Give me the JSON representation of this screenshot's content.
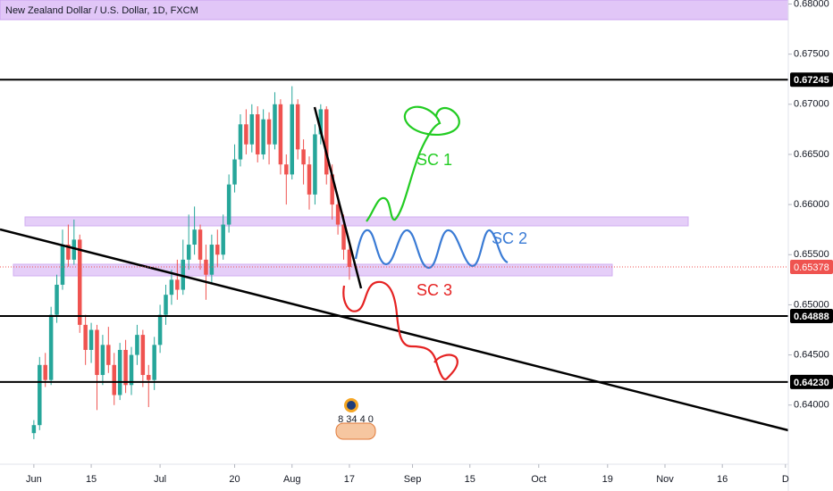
{
  "chart_data": {
    "type": "candlestick",
    "title": "New Zealand Dollar / U.S. Dollar, 1D, FXCM",
    "up_color": "#26a69a",
    "down_color": "#ef5350",
    "open": [
      0.6372,
      0.638,
      0.644,
      0.6425,
      0.649,
      0.652,
      0.656,
      0.6545,
      0.6565,
      0.648,
      0.6455,
      0.6475,
      0.643,
      0.646,
      0.644,
      0.641,
      0.6455,
      0.642,
      0.645,
      0.647,
      0.643,
      0.6425,
      0.646,
      0.649,
      0.651,
      0.6525,
      0.6515,
      0.6545,
      0.656,
      0.6575,
      0.6545,
      0.653,
      0.656,
      0.655,
      0.658,
      0.662,
      0.6645,
      0.668,
      0.666,
      0.669,
      0.665,
      0.6685,
      0.666,
      0.67,
      0.664,
      0.663,
      0.67,
      0.6655,
      0.664,
      0.661,
      0.667,
      0.6695,
      0.663,
      0.66,
      0.658,
      0.6555
    ],
    "high": [
      0.6385,
      0.6448,
      0.6452,
      0.6498,
      0.653,
      0.6575,
      0.658,
      0.6585,
      0.657,
      0.649,
      0.6482,
      0.648,
      0.647,
      0.6478,
      0.6452,
      0.6462,
      0.6465,
      0.6458,
      0.648,
      0.6475,
      0.644,
      0.6468,
      0.65,
      0.652,
      0.6535,
      0.6545,
      0.6565,
      0.659,
      0.6598,
      0.658,
      0.656,
      0.657,
      0.6575,
      0.659,
      0.663,
      0.666,
      0.669,
      0.6695,
      0.67,
      0.6698,
      0.6695,
      0.6692,
      0.6712,
      0.6705,
      0.665,
      0.6718,
      0.6705,
      0.6665,
      0.6648,
      0.668,
      0.67,
      0.6698,
      0.664,
      0.661,
      0.659,
      0.6562
    ],
    "low": [
      0.6366,
      0.6375,
      0.6418,
      0.642,
      0.6482,
      0.6515,
      0.6538,
      0.654,
      0.6472,
      0.644,
      0.6442,
      0.6395,
      0.642,
      0.6432,
      0.64,
      0.6405,
      0.6412,
      0.641,
      0.644,
      0.6418,
      0.6398,
      0.6415,
      0.6452,
      0.648,
      0.65,
      0.6505,
      0.651,
      0.6535,
      0.655,
      0.6535,
      0.6505,
      0.6522,
      0.6538,
      0.6545,
      0.6572,
      0.6612,
      0.6638,
      0.665,
      0.6652,
      0.6642,
      0.6645,
      0.664,
      0.6655,
      0.663,
      0.66,
      0.6625,
      0.6645,
      0.662,
      0.6595,
      0.66,
      0.666,
      0.662,
      0.6585,
      0.657,
      0.6545,
      0.6525
    ],
    "close": [
      0.638,
      0.644,
      0.6425,
      0.649,
      0.652,
      0.656,
      0.6545,
      0.6565,
      0.648,
      0.6455,
      0.6475,
      0.643,
      0.646,
      0.644,
      0.641,
      0.6455,
      0.642,
      0.645,
      0.647,
      0.643,
      0.6425,
      0.646,
      0.649,
      0.651,
      0.6525,
      0.6515,
      0.6545,
      0.656,
      0.6575,
      0.6545,
      0.653,
      0.656,
      0.655,
      0.658,
      0.662,
      0.6645,
      0.668,
      0.666,
      0.669,
      0.665,
      0.6685,
      0.666,
      0.67,
      0.664,
      0.663,
      0.67,
      0.6655,
      0.664,
      0.661,
      0.667,
      0.6695,
      0.663,
      0.66,
      0.658,
      0.6555,
      0.65378
    ],
    "xlim": [
      -5.9,
      131.5
    ],
    "xticks": [
      {
        "value": 0,
        "label": "Jun"
      },
      {
        "value": 10,
        "label": "15"
      },
      {
        "value": 22,
        "label": "Jul"
      },
      {
        "value": 35,
        "label": "20"
      },
      {
        "value": 45,
        "label": "Aug"
      },
      {
        "value": 55,
        "label": "17"
      },
      {
        "value": 66,
        "label": "Sep"
      },
      {
        "value": 76,
        "label": "15"
      },
      {
        "value": 88,
        "label": "Oct"
      },
      {
        "value": 100,
        "label": "19"
      },
      {
        "value": 110,
        "label": "Nov"
      },
      {
        "value": 120,
        "label": "16"
      },
      {
        "value": 131,
        "label": "D"
      }
    ],
    "ylim": [
      0.6341,
      0.6804
    ],
    "yticks": [
      {
        "value": 0.68,
        "label": "0.68000"
      },
      {
        "value": 0.675,
        "label": "0.67500"
      },
      {
        "value": 0.67,
        "label": "0.67000"
      },
      {
        "value": 0.665,
        "label": "0.66500"
      },
      {
        "value": 0.66,
        "label": "0.66000"
      },
      {
        "value": 0.655,
        "label": "0.65500"
      },
      {
        "value": 0.65,
        "label": "0.65000"
      },
      {
        "value": 0.645,
        "label": "0.64500"
      },
      {
        "value": 0.64,
        "label": "0.64000"
      }
    ],
    "levels": [
      0.67245,
      0.64888,
      {
        "value": 0.6423,
        "label": "0.64230"
      }
    ],
    "last_price": 0.65378,
    "annotations": [
      {
        "text": "SC 1",
        "color": "#22cc22"
      },
      {
        "text": "SC 2",
        "color": "#3a7bd5"
      },
      {
        "text": "SC 3",
        "color": "#e52222"
      }
    ],
    "badge": "8 34 4 0"
  }
}
